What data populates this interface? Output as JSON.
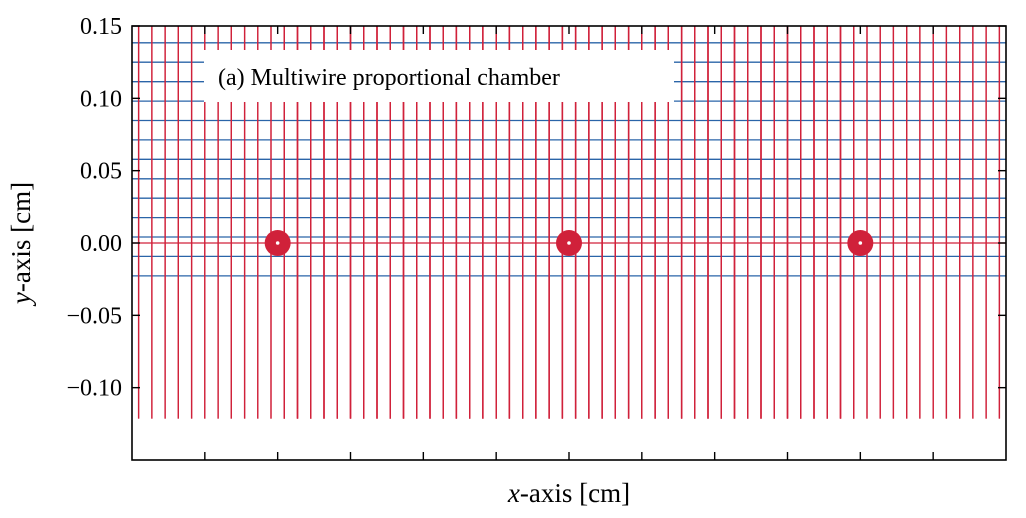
{
  "chart_data": {
    "type": "contour",
    "title": "",
    "annotation": "(a) Multiwire proportional chamber",
    "xlabel": {
      "var": "x",
      "text": "-axis [cm]"
    },
    "ylabel": {
      "var": "y",
      "text": "-axis [cm]"
    },
    "xlim": [
      -0.3,
      0.3
    ],
    "ylim": [
      -0.15,
      0.15
    ],
    "yticks": [
      0.15,
      0.1,
      0.05,
      0.0,
      -0.05,
      -0.1
    ],
    "ytick_labels": [
      "0.15",
      "0.10",
      "0.05",
      "0.00",
      "−0.05",
      "−0.10"
    ],
    "xticks": [
      -0.25,
      -0.2,
      -0.15,
      -0.1,
      -0.05,
      0.0,
      0.05,
      0.1,
      0.15,
      0.2,
      0.25
    ],
    "wires": [
      {
        "x": -0.2,
        "y": 0.0
      },
      {
        "x": 0.0,
        "y": 0.0
      },
      {
        "x": 0.2,
        "y": 0.0
      }
    ],
    "wire_pitch": 0.2,
    "series": [
      {
        "kind": "equipotential",
        "color": "#2a64a8",
        "levels": 24
      },
      {
        "kind": "field_line",
        "color": "#d0213a",
        "lines_per_wire": 44
      }
    ],
    "grid": false
  }
}
